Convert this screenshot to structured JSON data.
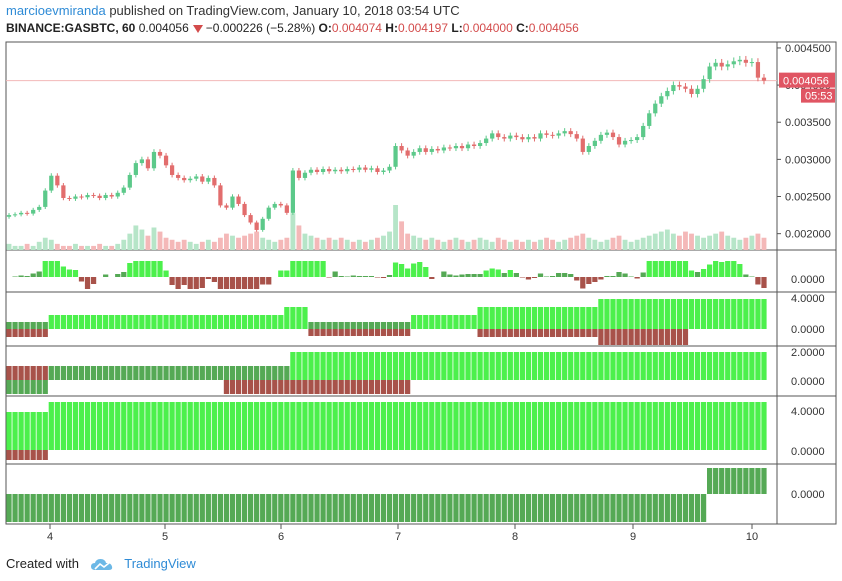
{
  "header": {
    "author": "marcioevmiranda",
    "published_text": "published on TradingView.com, January 10, 2018 03:54 UTC",
    "symbol": "BINANCE:GASBTC, 60",
    "last": "0.004056",
    "change": "−0.000226 (−5.28%)",
    "o_label": "O:",
    "o_value": "0.004074",
    "h_label": "H:",
    "h_value": "0.004197",
    "l_label": "L:",
    "l_value": "0.004000",
    "c_label": "C:",
    "c_value": "0.004056"
  },
  "price_badge": {
    "value": "0.004056",
    "countdown": "05:53"
  },
  "footer": {
    "created_with": "Created with",
    "brand": "TradingView"
  },
  "colors": {
    "up": "#5cc98a",
    "down": "#e26d6d",
    "bright_green": "#4cf04c",
    "dark_green": "#55a955",
    "dark_red": "#a8524a",
    "badge": "#e05563",
    "volume_up": "#b6e5c8",
    "volume_down": "#f4b8b8"
  },
  "chart_data": {
    "type": "candlestick",
    "x_ticks": [
      "4",
      "5",
      "6",
      "7",
      "8",
      "9",
      "10"
    ],
    "price_axis_ticks": [
      "0.004500",
      "0.004000",
      "0.003500",
      "0.003000",
      "0.002500",
      "0.002000"
    ],
    "price_range": [
      0.00178,
      0.00458
    ],
    "closes": [
      0.00225,
      0.00226,
      0.00228,
      0.00227,
      0.00232,
      0.00236,
      0.00258,
      0.00278,
      0.00265,
      0.00248,
      0.00247,
      0.0025,
      0.00249,
      0.00252,
      0.00251,
      0.00248,
      0.00252,
      0.0025,
      0.00255,
      0.00262,
      0.00279,
      0.00295,
      0.003,
      0.00288,
      0.0031,
      0.00305,
      0.00292,
      0.00279,
      0.00275,
      0.00272,
      0.00274,
      0.00277,
      0.0027,
      0.00275,
      0.00265,
      0.00238,
      0.00235,
      0.0025,
      0.0024,
      0.00225,
      0.00215,
      0.00205,
      0.0022,
      0.00235,
      0.0024,
      0.00238,
      0.00228,
      0.00285,
      0.00275,
      0.00282,
      0.00286,
      0.00283,
      0.00287,
      0.00284,
      0.00286,
      0.00284,
      0.00287,
      0.00286,
      0.00289,
      0.00286,
      0.00288,
      0.00283,
      0.00285,
      0.0029,
      0.00318,
      0.00312,
      0.00305,
      0.0031,
      0.00315,
      0.0031,
      0.00314,
      0.00312,
      0.00316,
      0.00315,
      0.00318,
      0.00315,
      0.0032,
      0.00318,
      0.00322,
      0.00328,
      0.00335,
      0.0033,
      0.00328,
      0.00332,
      0.0033,
      0.00327,
      0.0033,
      0.00328,
      0.00335,
      0.00333,
      0.00332,
      0.00335,
      0.00338,
      0.00334,
      0.00328,
      0.0031,
      0.00318,
      0.00325,
      0.00333,
      0.00336,
      0.0033,
      0.0032,
      0.00325,
      0.00326,
      0.0033,
      0.00345,
      0.00362,
      0.00375,
      0.00385,
      0.00392,
      0.004,
      0.00398,
      0.00395,
      0.00388,
      0.00395,
      0.00408,
      0.00425,
      0.0043,
      0.00425,
      0.00428,
      0.00432,
      0.00434,
      0.0043,
      0.00431,
      0.0041,
      0.00406
    ],
    "volumes": [
      3,
      2,
      2,
      3,
      2,
      4,
      6,
      5,
      3,
      2,
      2,
      3,
      2,
      2,
      2,
      3,
      2,
      2,
      3,
      5,
      8,
      12,
      10,
      7,
      11,
      9,
      6,
      5,
      4,
      5,
      4,
      3,
      4,
      5,
      4,
      6,
      8,
      7,
      6,
      7,
      8,
      9,
      6,
      5,
      4,
      5,
      6,
      18,
      12,
      8,
      7,
      6,
      5,
      6,
      5,
      6,
      5,
      4,
      5,
      4,
      5,
      6,
      7,
      9,
      22,
      14,
      8,
      7,
      6,
      5,
      6,
      5,
      4,
      5,
      6,
      5,
      4,
      5,
      6,
      5,
      4,
      6,
      5,
      4,
      5,
      4,
      5,
      4,
      5,
      6,
      5,
      4,
      5,
      6,
      7,
      8,
      6,
      5,
      4,
      5,
      6,
      7,
      5,
      4,
      5,
      6,
      7,
      8,
      9,
      10,
      8,
      7,
      9,
      8,
      7,
      6,
      7,
      8,
      9,
      7,
      6,
      5,
      6,
      7,
      8,
      6
    ],
    "indicator_axis_labels": {
      "pane1": [
        "0.0000"
      ],
      "pane2": [
        "4.0000",
        "0.0000"
      ],
      "pane3": [
        "2.0000",
        "0.0000"
      ],
      "pane4": [
        "4.0000",
        "0.0000"
      ],
      "pane5": [
        "0.0000"
      ]
    }
  }
}
